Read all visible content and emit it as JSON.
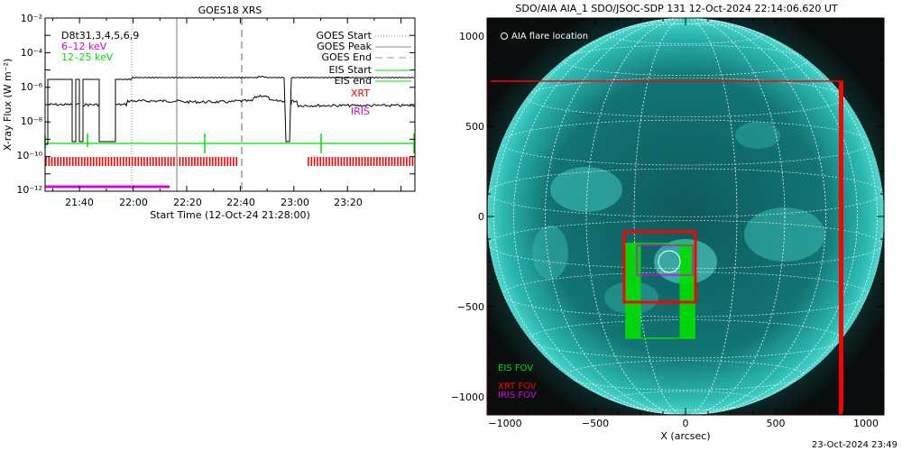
{
  "left_chart": {
    "title": "GOES18 XRS",
    "ylabel": "X-ray Flux (W m⁻²)",
    "xlabel": "Start Time (12-Oct-24 21:28:00)",
    "y_ticks": [
      "10⁻²",
      "10⁻⁴",
      "10⁻⁶",
      "10⁻⁸",
      "10⁻¹⁰",
      "10⁻¹²"
    ],
    "x_ticks": [
      "21:40",
      "22:00",
      "22:20",
      "22:40",
      "23:00",
      "23:20"
    ],
    "legend_left": {
      "dataset": "D8t31,3,4,5,6,9",
      "band1": "6–12 keV",
      "band2": "12–25 keV"
    },
    "legend_right": {
      "goes_start": "GOES Start",
      "goes_peak": "GOES Peak",
      "goes_end": "GOES End",
      "eis_start": "EIS Start",
      "eis_end": "EIS end",
      "xrt": "XRT",
      "iris": "IRIS"
    }
  },
  "right_chart": {
    "title": "SDO/AIA AIA_1 SDO/JSOC-SDP 131 12-Oct-2024 22:14:06.620 UT",
    "flare_label": "AIA flare location",
    "xlabel": "X (arcsec)",
    "x_ticks": [
      "−1000",
      "−500",
      "0",
      "500",
      "1000"
    ],
    "y_ticks": [
      "1000",
      "500",
      "0",
      "−500",
      "−1000"
    ],
    "legend": {
      "eis": "EIS FOV",
      "xrt": "XRT FOV",
      "iris": "IRIS FOV"
    }
  },
  "footer_timestamp": "23-Oct-2024 23:49",
  "colors": {
    "eis": "#00e000",
    "xrt": "#ff0000",
    "iris": "#e000e0",
    "sun": "#2bb8b0"
  },
  "chart_data": [
    {
      "type": "line",
      "title": "GOES18 XRS",
      "ylabel": "X-ray Flux (W m-2)",
      "xlabel": "Start Time (12-Oct-24 21:28:00)",
      "y_scale": "log",
      "ylim": [
        1e-12,
        0.01
      ],
      "xlim": [
        "21:28",
        "23:47"
      ],
      "series": [
        {
          "name": "6-12 keV",
          "x": [
            "21:28",
            "21:52"
          ],
          "y": [
            1e-12,
            1e-12
          ]
        },
        {
          "name": "12-25 keV",
          "x": [
            "21:28",
            "23:47"
          ],
          "y": [
            5e-10,
            5e-10
          ]
        }
      ],
      "goes_start": "21:59",
      "goes_peak": "22:13",
      "goes_end": "22:38"
    },
    {
      "type": "scatter",
      "title": "SDO/AIA AIA_1 SDO/JSOC-SDP 131 12-Oct-2024 22:14:06.620 UT",
      "xlabel": "X (arcsec)",
      "xlim": [
        -1100,
        1130
      ],
      "ylim": [
        -1100,
        1030
      ],
      "flare_location": [
        -90,
        -250
      ],
      "eis_fov": {
        "x": [
          -320,
          70
        ],
        "y": [
          -680,
          -150
        ]
      },
      "xrt_fov_large": {
        "x": [
          -1100,
          880
        ],
        "y": [
          -1100,
          750
        ]
      },
      "xrt_fov_small": {
        "x": [
          -360,
          80
        ],
        "y": [
          -480,
          -80
        ]
      },
      "iris_fov": {
        "x": [
          -300,
          40
        ],
        "y": [
          -330,
          -130
        ]
      }
    }
  ]
}
